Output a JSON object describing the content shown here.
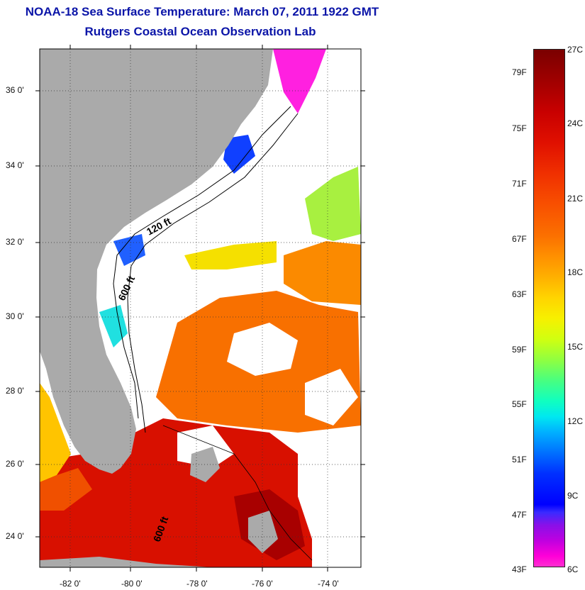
{
  "header": {
    "title": "NOAA-18 Sea Surface Temperature:  March 07, 2011 1922 GMT",
    "subtitle": "Rutgers Coastal Ocean Observation Lab"
  },
  "map": {
    "lat_labels": [
      "36 0'",
      "34 0'",
      "32 0'",
      "30 0'",
      "28 0'",
      "26 0'",
      "24 0'"
    ],
    "lon_labels": [
      "-82 0'",
      "-80 0'",
      "-78 0'",
      "-76 0'",
      "-74 0'"
    ],
    "contour_labels": [
      "120 ft",
      "600 ft",
      "600 ft"
    ],
    "colors": {
      "land": "#aaaaaa",
      "cloud": "#ffffff",
      "border": "#000000"
    }
  },
  "colorbar": {
    "fahrenheit_labels": [
      "79F",
      "75F",
      "71F",
      "67F",
      "63F",
      "59F",
      "55F",
      "51F",
      "47F",
      "43F"
    ],
    "celsius_labels": [
      "27C",
      "24C",
      "21C",
      "18C",
      "15C",
      "12C",
      "9C",
      "6C"
    ],
    "range_c": [
      6,
      27
    ]
  }
}
